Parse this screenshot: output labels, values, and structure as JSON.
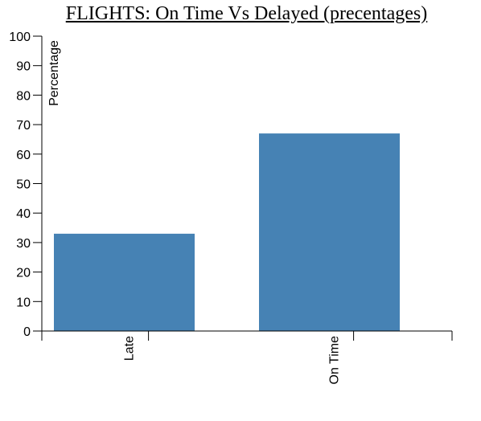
{
  "chart_data": {
    "type": "bar",
    "title": "FLIGHTS: On Time Vs Delayed (precentages)",
    "xlabel": "",
    "ylabel": "Percentage",
    "categories": [
      "Late",
      "On Time"
    ],
    "values": [
      33,
      67
    ],
    "ylim": [
      0,
      100
    ],
    "yticks": [
      0,
      10,
      20,
      30,
      40,
      50,
      60,
      70,
      80,
      90,
      100
    ],
    "bar_color": "#4682b4",
    "grid": false
  }
}
